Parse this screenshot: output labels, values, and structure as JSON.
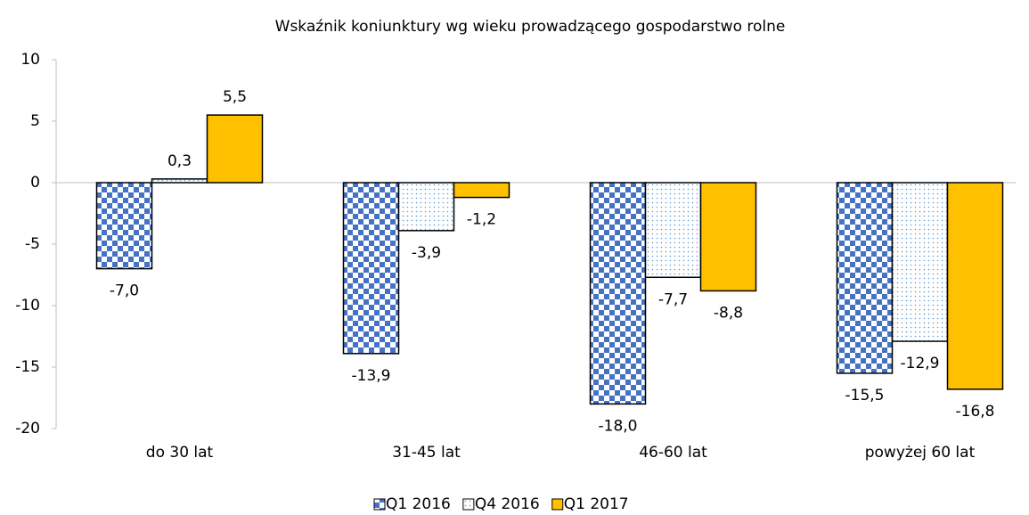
{
  "chart_data": {
    "type": "bar",
    "title": "Wskaźnik koniunktury wg wieku prowadzącego gospodarstwo rolne",
    "categories": [
      "do 30 lat",
      "31-45 lat",
      "46-60 lat",
      "powyżej 60 lat"
    ],
    "series": [
      {
        "name": "Q1 2016",
        "color": "#4472c4",
        "values": [
          -7.0,
          -13.9,
          -18.0,
          -15.5
        ],
        "value_labels": [
          "-7,0",
          "-13,9",
          "-18,0",
          "-15,5"
        ]
      },
      {
        "name": "Q4 2016",
        "color": "#5b9bd5",
        "values": [
          0.3,
          -3.9,
          -7.7,
          -12.9
        ],
        "value_labels": [
          "0,3",
          "-3,9",
          "-7,7",
          "-12,9"
        ]
      },
      {
        "name": "Q1 2017",
        "color": "#ffc000",
        "values": [
          5.5,
          -1.2,
          -8.8,
          -16.8
        ],
        "value_labels": [
          "5,5",
          "-1,2",
          "-8,8",
          "-16,8"
        ]
      }
    ],
    "ylim": [
      -20,
      10
    ],
    "yticks": [
      -20,
      -15,
      -10,
      -5,
      0,
      5,
      10
    ],
    "legend": "bottom"
  }
}
